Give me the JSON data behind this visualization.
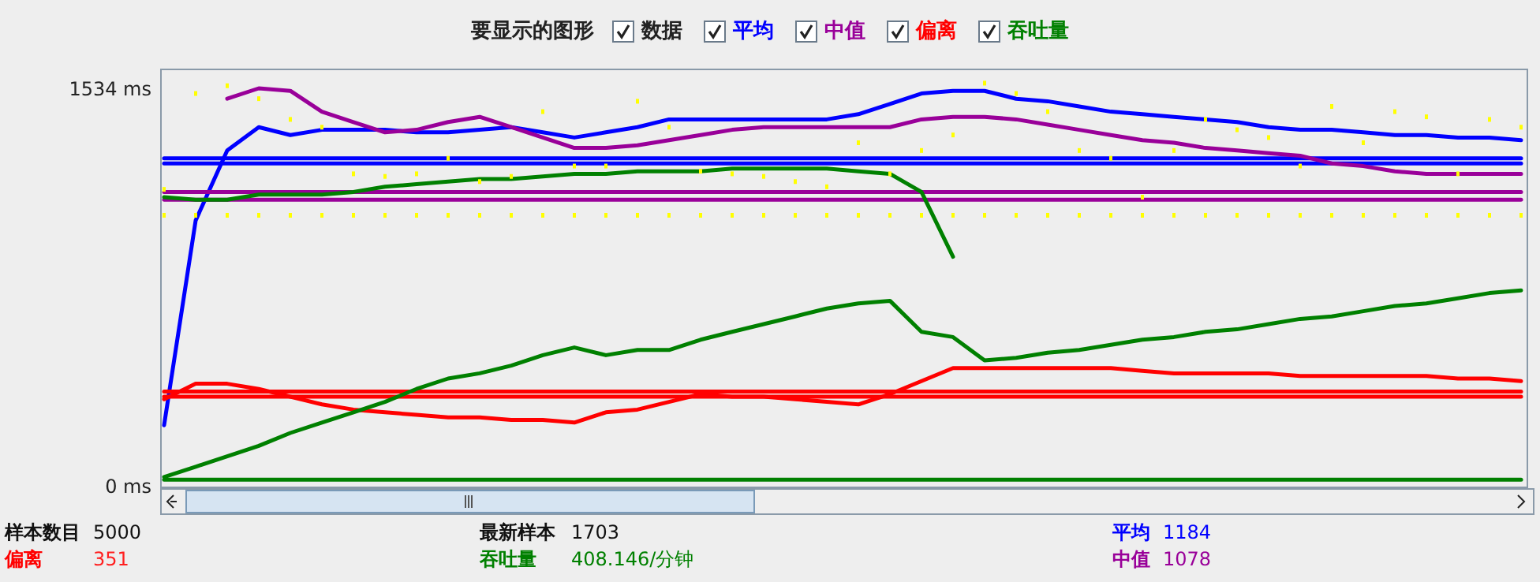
{
  "chart_data": {
    "type": "line",
    "legend_title": "要显示的图形",
    "legend": "top",
    "tick_labels": "y",
    "categories": [
      null,
      null,
      null,
      null,
      null,
      null,
      null,
      null,
      null,
      null,
      null,
      null,
      null,
      null,
      null,
      null,
      null,
      null,
      null,
      null,
      null,
      null,
      null,
      null,
      null,
      null,
      null,
      null,
      null,
      null,
      null,
      null,
      null,
      null,
      null,
      null,
      null,
      null,
      null,
      null,
      null,
      null,
      null,
      null
    ],
    "ylim": [
      0,
      1613
    ],
    "yticks": [
      {
        "value": 1534,
        "label": "1534 ms"
      },
      {
        "value": 0,
        "label": "0 ms"
      }
    ],
    "series": [
      {
        "name": "数据",
        "type": "scatter",
        "marker": "square",
        "color": "#ffff00",
        "values": [
          1150,
          1520,
          1550,
          1500,
          1420,
          1390,
          1210,
          1200,
          1210,
          1270,
          1180,
          1200,
          1450,
          1240,
          1240,
          1490,
          1390,
          1220,
          1210,
          1200,
          1180,
          1160,
          1330,
          1210,
          1300,
          1360,
          1560,
          1520,
          1450,
          1300,
          1270,
          1120,
          1300,
          1420,
          1380,
          1350,
          1240,
          1470,
          1330,
          1450,
          1430,
          1210,
          1420,
          1390
        ]
      },
      {
        "type": "scatter",
        "marker": "square",
        "color": "#ffff00",
        "values": [
          1050,
          1050,
          1050,
          1050,
          1050,
          1050,
          1050,
          1050,
          1050,
          1050,
          1050,
          1050,
          1050,
          1050,
          1050,
          1050,
          1050,
          1050,
          1050,
          1050,
          1050,
          1050,
          1050,
          1050,
          1050,
          1050,
          1050,
          1050,
          1050,
          1050,
          1050,
          1050,
          1050,
          1050,
          1050,
          1050,
          1050,
          1050,
          1050,
          1050,
          1050,
          1050,
          1050,
          1050
        ]
      },
      {
        "name": "平均",
        "type": "line",
        "color": "#0000ff",
        "values": [
          240,
          1030,
          1300,
          1390,
          1360,
          1380,
          1380,
          1380,
          1370,
          1370,
          1380,
          1390,
          1370,
          1350,
          1370,
          1390,
          1420,
          1420,
          1420,
          1420,
          1420,
          1420,
          1440,
          1480,
          1520,
          1530,
          1530,
          1500,
          1490,
          1470,
          1450,
          1440,
          1430,
          1420,
          1410,
          1390,
          1380,
          1380,
          1370,
          1360,
          1360,
          1350,
          1350,
          1340
        ]
      },
      {
        "type": "line",
        "color": "#0000ff",
        "values": [
          1270,
          1270,
          1270,
          1270,
          1270,
          1270,
          1270,
          1270,
          1270,
          1270,
          1270,
          1270,
          1270,
          1270,
          1270,
          1270,
          1270,
          1270,
          1270,
          1270,
          1270,
          1270,
          1270,
          1270,
          1270,
          1270,
          1270,
          1270,
          1270,
          1270,
          1270,
          1270,
          1270,
          1270,
          1270,
          1270,
          1270,
          1270,
          1270,
          1270,
          1270,
          1270,
          1270,
          1270
        ]
      },
      {
        "type": "line",
        "color": "#0000ff",
        "values": [
          1250,
          1250,
          1250,
          1250,
          1250,
          1250,
          1250,
          1250,
          1250,
          1250,
          1250,
          1250,
          1250,
          1250,
          1250,
          1250,
          1250,
          1250,
          1250,
          1250,
          1250,
          1250,
          1250,
          1250,
          1250,
          1250,
          1250,
          1250,
          1250,
          1250,
          1250,
          1250,
          1250,
          1250,
          1250,
          1250,
          1250,
          1250,
          1250,
          1250,
          1250,
          1250,
          1250,
          1250
        ]
      },
      {
        "name": "中值",
        "type": "line",
        "color": "#990099",
        "values": [
          null,
          null,
          1500,
          1540,
          1530,
          1450,
          1410,
          1370,
          1380,
          1410,
          1430,
          1390,
          1350,
          1310,
          1310,
          1320,
          1340,
          1360,
          1380,
          1390,
          1390,
          1390,
          1390,
          1390,
          1420,
          1430,
          1430,
          1420,
          1400,
          1380,
          1360,
          1340,
          1330,
          1310,
          1300,
          1290,
          1280,
          1250,
          1240,
          1220,
          1210,
          1210,
          1210,
          1210
        ]
      },
      {
        "type": "line",
        "color": "#990099",
        "values": [
          1140,
          1140,
          1140,
          1140,
          1140,
          1140,
          1140,
          1140,
          1140,
          1140,
          1140,
          1140,
          1140,
          1140,
          1140,
          1140,
          1140,
          1140,
          1140,
          1140,
          1140,
          1140,
          1140,
          1140,
          1140,
          1140,
          1140,
          1140,
          1140,
          1140,
          1140,
          1140,
          1140,
          1140,
          1140,
          1140,
          1140,
          1140,
          1140,
          1140,
          1140,
          1140,
          1140,
          1140
        ]
      },
      {
        "type": "line",
        "color": "#990099",
        "values": [
          1110,
          1110,
          1110,
          1110,
          1110,
          1110,
          1110,
          1110,
          1110,
          1110,
          1110,
          1110,
          1110,
          1110,
          1110,
          1110,
          1110,
          1110,
          1110,
          1110,
          1110,
          1110,
          1110,
          1110,
          1110,
          1110,
          1110,
          1110,
          1110,
          1110,
          1110,
          1110,
          1110,
          1110,
          1110,
          1110,
          1110,
          1110,
          1110,
          1110,
          1110,
          1110,
          1110,
          1110
        ]
      },
      {
        "name": "偏离",
        "type": "line",
        "color": "#ff0000",
        "values": [
          340,
          400,
          400,
          380,
          350,
          320,
          300,
          290,
          280,
          270,
          270,
          260,
          260,
          250,
          290,
          300,
          330,
          360,
          350,
          350,
          340,
          330,
          320,
          360,
          410,
          460,
          460,
          460,
          460,
          460,
          460,
          450,
          440,
          440,
          440,
          440,
          430,
          430,
          430,
          430,
          430,
          420,
          420,
          410
        ]
      },
      {
        "type": "line",
        "color": "#ff0000",
        "values": [
          370,
          370,
          370,
          370,
          370,
          370,
          370,
          370,
          370,
          370,
          370,
          370,
          370,
          370,
          370,
          370,
          370,
          370,
          370,
          370,
          370,
          370,
          370,
          370,
          370,
          370,
          370,
          370,
          370,
          370,
          370,
          370,
          370,
          370,
          370,
          370,
          370,
          370,
          370,
          370,
          370,
          370,
          370,
          370
        ]
      },
      {
        "type": "line",
        "color": "#ff0000",
        "values": [
          350,
          350,
          350,
          350,
          350,
          350,
          350,
          350,
          350,
          350,
          350,
          350,
          350,
          350,
          350,
          350,
          350,
          350,
          350,
          350,
          350,
          350,
          350,
          350,
          350,
          350,
          350,
          350,
          350,
          350,
          350,
          350,
          350,
          350,
          350,
          350,
          350,
          350,
          350,
          350,
          350,
          350,
          350,
          350
        ]
      },
      {
        "name": "吞吐量",
        "type": "line",
        "color": "#008000",
        "values": [
          40,
          80,
          120,
          160,
          210,
          250,
          290,
          330,
          380,
          420,
          440,
          470,
          510,
          540,
          510,
          530,
          530,
          570,
          600,
          630,
          660,
          690,
          710,
          720,
          600,
          580,
          490,
          500,
          520,
          530,
          550,
          570,
          580,
          600,
          610,
          630,
          650,
          660,
          680,
          700,
          710,
          730,
          750,
          760
        ]
      },
      {
        "type": "line",
        "color": "#008000",
        "values": [
          1120,
          1110,
          1110,
          1130,
          1130,
          1130,
          1140,
          1160,
          1170,
          1180,
          1190,
          1190,
          1200,
          1210,
          1210,
          1220,
          1220,
          1220,
          1230,
          1230,
          1230,
          1230,
          1220,
          1210,
          1140,
          890,
          null,
          null,
          null,
          null,
          null,
          null,
          null,
          null,
          null,
          null,
          null,
          null,
          null,
          null,
          null,
          null,
          null,
          null
        ]
      },
      {
        "type": "line",
        "color": "#008000",
        "values": [
          30,
          30,
          30,
          30,
          30,
          30,
          30,
          30,
          30,
          30,
          30,
          30,
          30,
          30,
          30,
          30,
          30,
          30,
          30,
          30,
          30,
          30,
          30,
          30,
          30,
          30,
          30,
          30,
          30,
          30,
          30,
          30,
          30,
          30,
          30,
          30,
          30,
          30,
          30,
          30,
          30,
          30,
          30,
          30
        ]
      }
    ],
    "annotations": [
      "样本数目",
      "5000",
      "最新样本",
      "1703",
      "平均",
      "1184",
      "偏离",
      "351",
      "吞吐量",
      "408.146/分钟",
      "中值",
      "1078"
    ]
  }
}
